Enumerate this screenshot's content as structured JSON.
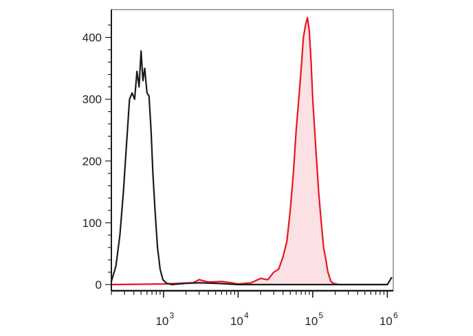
{
  "chart_data": {
    "type": "area",
    "title": "",
    "xlabel": "",
    "ylabel": "",
    "x_scale": "log",
    "xlim": [
      200,
      1200000
    ],
    "ylim": [
      -10,
      445
    ],
    "grid": false,
    "y_ticks": [
      {
        "value": 0,
        "label": "0"
      },
      {
        "value": 100,
        "label": "100"
      },
      {
        "value": 200,
        "label": "200"
      },
      {
        "value": 300,
        "label": "300"
      },
      {
        "value": 400,
        "label": "400"
      }
    ],
    "x_ticks": [
      {
        "value": 1000,
        "base": "10",
        "exponent": "3"
      },
      {
        "value": 10000,
        "base": "10",
        "exponent": "4"
      },
      {
        "value": 100000,
        "base": "10",
        "exponent": "5"
      },
      {
        "value": 1000000,
        "base": "10",
        "exponent": "6"
      }
    ],
    "series": [
      {
        "color": "#1a1a1a",
        "filled": false,
        "points": [
          [
            200,
            5
          ],
          [
            230,
            30
          ],
          [
            260,
            80
          ],
          [
            290,
            150
          ],
          [
            320,
            230
          ],
          [
            350,
            300
          ],
          [
            380,
            310
          ],
          [
            410,
            300
          ],
          [
            440,
            345
          ],
          [
            470,
            320
          ],
          [
            500,
            378
          ],
          [
            530,
            330
          ],
          [
            560,
            350
          ],
          [
            600,
            310
          ],
          [
            640,
            305
          ],
          [
            680,
            250
          ],
          [
            720,
            180
          ],
          [
            770,
            120
          ],
          [
            830,
            60
          ],
          [
            900,
            25
          ],
          [
            980,
            8
          ],
          [
            1100,
            2
          ],
          [
            1300,
            0
          ],
          [
            2000,
            2
          ],
          [
            3000,
            3
          ],
          [
            5000,
            2
          ],
          [
            10000,
            0
          ],
          [
            1000000,
            0
          ],
          [
            1150000,
            12
          ]
        ]
      },
      {
        "color": "#e8141e",
        "fill": "#fbe1e3",
        "filled": true,
        "points": [
          [
            200,
            0
          ],
          [
            1000,
            1
          ],
          [
            2500,
            3
          ],
          [
            3000,
            8
          ],
          [
            4000,
            4
          ],
          [
            6000,
            5
          ],
          [
            8000,
            3
          ],
          [
            10000,
            1
          ],
          [
            15000,
            3
          ],
          [
            20000,
            10
          ],
          [
            25000,
            8
          ],
          [
            30000,
            20
          ],
          [
            35000,
            25
          ],
          [
            40000,
            45
          ],
          [
            45000,
            70
          ],
          [
            50000,
            120
          ],
          [
            55000,
            180
          ],
          [
            60000,
            250
          ],
          [
            65000,
            300
          ],
          [
            70000,
            350
          ],
          [
            75000,
            400
          ],
          [
            80000,
            420
          ],
          [
            85000,
            432
          ],
          [
            90000,
            410
          ],
          [
            95000,
            360
          ],
          [
            100000,
            300
          ],
          [
            110000,
            220
          ],
          [
            120000,
            150
          ],
          [
            130000,
            100
          ],
          [
            140000,
            60
          ],
          [
            150000,
            40
          ],
          [
            160000,
            20
          ],
          [
            175000,
            5
          ],
          [
            190000,
            2
          ],
          [
            220000,
            0
          ],
          [
            1000000,
            0
          ]
        ]
      }
    ]
  }
}
